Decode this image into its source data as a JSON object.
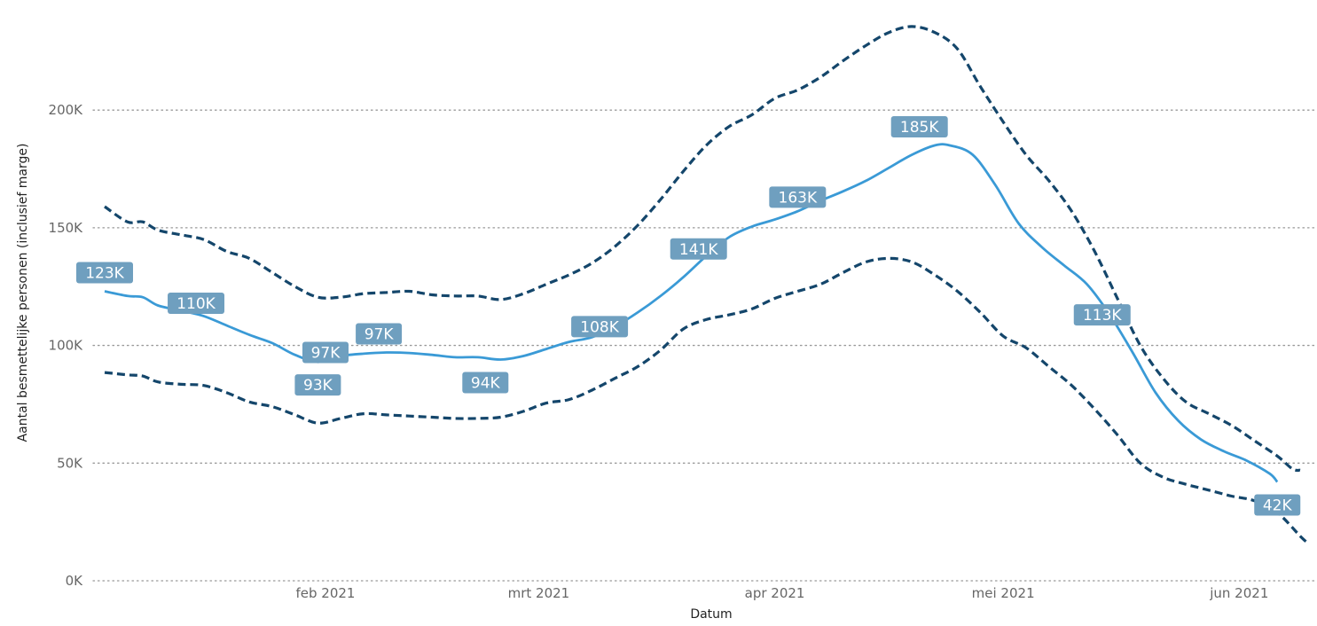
{
  "chart_data": {
    "type": "line",
    "xlabel": "Datum",
    "ylabel": "Aantal besmettelijke personen (inclusief marge)",
    "ylim": [
      0,
      240000
    ],
    "grid": "horizontal dotted",
    "y_ticks": [
      {
        "value": 0,
        "label": "0K"
      },
      {
        "value": 50000,
        "label": "50K"
      },
      {
        "value": 100000,
        "label": "100K"
      },
      {
        "value": 150000,
        "label": "150K"
      },
      {
        "value": 200000,
        "label": "200K"
      }
    ],
    "x_range": [
      "2021-01-03",
      "2021-06-09"
    ],
    "x_ticks": [
      {
        "date": "2021-02-01",
        "label": "feb 2021"
      },
      {
        "date": "2021-03-01",
        "label": "mrt 2021"
      },
      {
        "date": "2021-04-01",
        "label": "apr 2021"
      },
      {
        "date": "2021-05-01",
        "label": "mei 2021"
      },
      {
        "date": "2021-06-01",
        "label": "jun 2021"
      }
    ],
    "colors": {
      "main": "#3a9ad6",
      "bounds": "#14466b",
      "label_bg": "#6f9fbf",
      "grid": "#999999"
    },
    "series": [
      {
        "role": "estimate",
        "style": "solid",
        "points": [
          [
            "2021-01-03",
            123000
          ],
          [
            "2021-01-06",
            121000
          ],
          [
            "2021-01-08",
            120500
          ],
          [
            "2021-01-10",
            117000
          ],
          [
            "2021-01-13",
            114800
          ],
          [
            "2021-01-16",
            112500
          ],
          [
            "2021-01-19",
            108500
          ],
          [
            "2021-01-22",
            104500
          ],
          [
            "2021-01-25",
            101000
          ],
          [
            "2021-01-28",
            96000
          ],
          [
            "2021-01-31",
            93000
          ],
          [
            "2021-02-03",
            95500
          ],
          [
            "2021-02-06",
            96500
          ],
          [
            "2021-02-09",
            97000
          ],
          [
            "2021-02-12",
            96800
          ],
          [
            "2021-02-15",
            96000
          ],
          [
            "2021-02-18",
            95000
          ],
          [
            "2021-02-21",
            95000
          ],
          [
            "2021-02-24",
            94000
          ],
          [
            "2021-02-27",
            95500
          ],
          [
            "2021-03-02",
            98500
          ],
          [
            "2021-03-05",
            101500
          ],
          [
            "2021-03-08",
            103500
          ],
          [
            "2021-03-11",
            108000
          ],
          [
            "2021-03-14",
            114000
          ],
          [
            "2021-03-17",
            121000
          ],
          [
            "2021-03-20",
            129000
          ],
          [
            "2021-03-23",
            138000
          ],
          [
            "2021-03-26",
            146000
          ],
          [
            "2021-03-29",
            150500
          ],
          [
            "2021-04-01",
            153500
          ],
          [
            "2021-04-04",
            157000
          ],
          [
            "2021-04-07",
            161500
          ],
          [
            "2021-04-10",
            165500
          ],
          [
            "2021-04-13",
            170000
          ],
          [
            "2021-04-16",
            175500
          ],
          [
            "2021-04-19",
            181000
          ],
          [
            "2021-04-22",
            185000
          ],
          [
            "2021-04-24",
            185000
          ],
          [
            "2021-04-27",
            181000
          ],
          [
            "2021-04-30",
            168000
          ],
          [
            "2021-05-03",
            152000
          ],
          [
            "2021-05-06",
            142000
          ],
          [
            "2021-05-09",
            134000
          ],
          [
            "2021-05-12",
            126000
          ],
          [
            "2021-05-15",
            113000
          ],
          [
            "2021-05-18",
            97000
          ],
          [
            "2021-05-21",
            80000
          ],
          [
            "2021-05-24",
            68000
          ],
          [
            "2021-05-27",
            60000
          ],
          [
            "2021-05-30",
            55000
          ],
          [
            "2021-06-02",
            51000
          ],
          [
            "2021-06-05",
            45500
          ],
          [
            "2021-06-06",
            42000
          ]
        ]
      },
      {
        "role": "upper-bound",
        "style": "dashed",
        "points": [
          [
            "2021-01-03",
            159000
          ],
          [
            "2021-01-06",
            152500
          ],
          [
            "2021-01-08",
            152500
          ],
          [
            "2021-01-10",
            149000
          ],
          [
            "2021-01-13",
            147000
          ],
          [
            "2021-01-16",
            145000
          ],
          [
            "2021-01-19",
            140000
          ],
          [
            "2021-01-22",
            137000
          ],
          [
            "2021-01-25",
            131000
          ],
          [
            "2021-01-28",
            125000
          ],
          [
            "2021-01-31",
            120500
          ],
          [
            "2021-02-03",
            120500
          ],
          [
            "2021-02-06",
            122000
          ],
          [
            "2021-02-09",
            122500
          ],
          [
            "2021-02-12",
            123000
          ],
          [
            "2021-02-15",
            121500
          ],
          [
            "2021-02-18",
            121000
          ],
          [
            "2021-02-21",
            121000
          ],
          [
            "2021-02-24",
            119500
          ],
          [
            "2021-02-27",
            122000
          ],
          [
            "2021-03-02",
            126000
          ],
          [
            "2021-03-05",
            130000
          ],
          [
            "2021-03-08",
            135000
          ],
          [
            "2021-03-11",
            142000
          ],
          [
            "2021-03-14",
            151000
          ],
          [
            "2021-03-17",
            162000
          ],
          [
            "2021-03-20",
            174000
          ],
          [
            "2021-03-23",
            185000
          ],
          [
            "2021-03-26",
            193000
          ],
          [
            "2021-03-29",
            198000
          ],
          [
            "2021-04-01",
            205000
          ],
          [
            "2021-04-04",
            208500
          ],
          [
            "2021-04-07",
            214000
          ],
          [
            "2021-04-10",
            221000
          ],
          [
            "2021-04-13",
            227500
          ],
          [
            "2021-04-16",
            233000
          ],
          [
            "2021-04-19",
            235500
          ],
          [
            "2021-04-22",
            233000
          ],
          [
            "2021-04-25",
            226000
          ],
          [
            "2021-04-28",
            210000
          ],
          [
            "2021-05-01",
            195000
          ],
          [
            "2021-05-04",
            181000
          ],
          [
            "2021-05-07",
            170000
          ],
          [
            "2021-05-10",
            157000
          ],
          [
            "2021-05-13",
            140000
          ],
          [
            "2021-05-16",
            120000
          ],
          [
            "2021-05-19",
            100000
          ],
          [
            "2021-05-22",
            86000
          ],
          [
            "2021-05-25",
            76000
          ],
          [
            "2021-05-28",
            71000
          ],
          [
            "2021-05-31",
            66000
          ],
          [
            "2021-06-03",
            59500
          ],
          [
            "2021-06-06",
            53000
          ],
          [
            "2021-06-08",
            47500
          ],
          [
            "2021-06-09",
            47000
          ]
        ]
      },
      {
        "role": "lower-bound",
        "style": "dashed",
        "points": [
          [
            "2021-01-03",
            88500
          ],
          [
            "2021-01-06",
            87500
          ],
          [
            "2021-01-08",
            87000
          ],
          [
            "2021-01-10",
            84500
          ],
          [
            "2021-01-13",
            83500
          ],
          [
            "2021-01-16",
            83000
          ],
          [
            "2021-01-19",
            80000
          ],
          [
            "2021-01-22",
            76000
          ],
          [
            "2021-01-25",
            74000
          ],
          [
            "2021-01-28",
            70500
          ],
          [
            "2021-01-31",
            67000
          ],
          [
            "2021-02-03",
            69000
          ],
          [
            "2021-02-06",
            71000
          ],
          [
            "2021-02-09",
            70500
          ],
          [
            "2021-02-12",
            70000
          ],
          [
            "2021-02-15",
            69500
          ],
          [
            "2021-02-18",
            69000
          ],
          [
            "2021-02-21",
            69000
          ],
          [
            "2021-02-24",
            69500
          ],
          [
            "2021-02-27",
            72000
          ],
          [
            "2021-03-02",
            75500
          ],
          [
            "2021-03-05",
            77000
          ],
          [
            "2021-03-08",
            81000
          ],
          [
            "2021-03-11",
            86000
          ],
          [
            "2021-03-14",
            91000
          ],
          [
            "2021-03-17",
            98000
          ],
          [
            "2021-03-20",
            107000
          ],
          [
            "2021-03-23",
            111000
          ],
          [
            "2021-03-26",
            113000
          ],
          [
            "2021-03-29",
            115500
          ],
          [
            "2021-04-01",
            120000
          ],
          [
            "2021-04-04",
            123000
          ],
          [
            "2021-04-07",
            126000
          ],
          [
            "2021-04-10",
            131000
          ],
          [
            "2021-04-13",
            135500
          ],
          [
            "2021-04-16",
            137000
          ],
          [
            "2021-04-19",
            135500
          ],
          [
            "2021-04-22",
            130000
          ],
          [
            "2021-04-25",
            123000
          ],
          [
            "2021-04-28",
            114000
          ],
          [
            "2021-05-01",
            104000
          ],
          [
            "2021-05-04",
            99000
          ],
          [
            "2021-05-07",
            91000
          ],
          [
            "2021-05-10",
            83000
          ],
          [
            "2021-05-13",
            73000
          ],
          [
            "2021-05-16",
            62000
          ],
          [
            "2021-05-19",
            50000
          ],
          [
            "2021-05-22",
            44000
          ],
          [
            "2021-05-25",
            41000
          ],
          [
            "2021-05-28",
            38500
          ],
          [
            "2021-05-31",
            36000
          ],
          [
            "2021-06-03",
            34000
          ],
          [
            "2021-06-06",
            29000
          ],
          [
            "2021-06-09",
            19000
          ],
          [
            "2021-06-10",
            16000
          ]
        ]
      }
    ],
    "data_labels": [
      {
        "date": "2021-01-03",
        "value": 123000,
        "text": "123K",
        "pos": "above"
      },
      {
        "date": "2021-01-15",
        "value": 110000,
        "text": "110K",
        "pos": "above"
      },
      {
        "date": "2021-01-31",
        "value": 93000,
        "text": "93K",
        "pos": "below"
      },
      {
        "date": "2021-02-01",
        "value": 97000,
        "text": "97K",
        "pos": "on"
      },
      {
        "date": "2021-02-08",
        "value": 97000,
        "text": "97K",
        "pos": "above"
      },
      {
        "date": "2021-02-22",
        "value": 94000,
        "text": "94K",
        "pos": "below"
      },
      {
        "date": "2021-03-09",
        "value": 108000,
        "text": "108K",
        "pos": "on"
      },
      {
        "date": "2021-03-22",
        "value": 141000,
        "text": "141K",
        "pos": "on"
      },
      {
        "date": "2021-04-04",
        "value": 163000,
        "text": "163K",
        "pos": "on"
      },
      {
        "date": "2021-04-20",
        "value": 185000,
        "text": "185K",
        "pos": "above"
      },
      {
        "date": "2021-05-14",
        "value": 113000,
        "text": "113K",
        "pos": "on"
      },
      {
        "date": "2021-06-06",
        "value": 42000,
        "text": "42K",
        "pos": "below"
      }
    ]
  }
}
